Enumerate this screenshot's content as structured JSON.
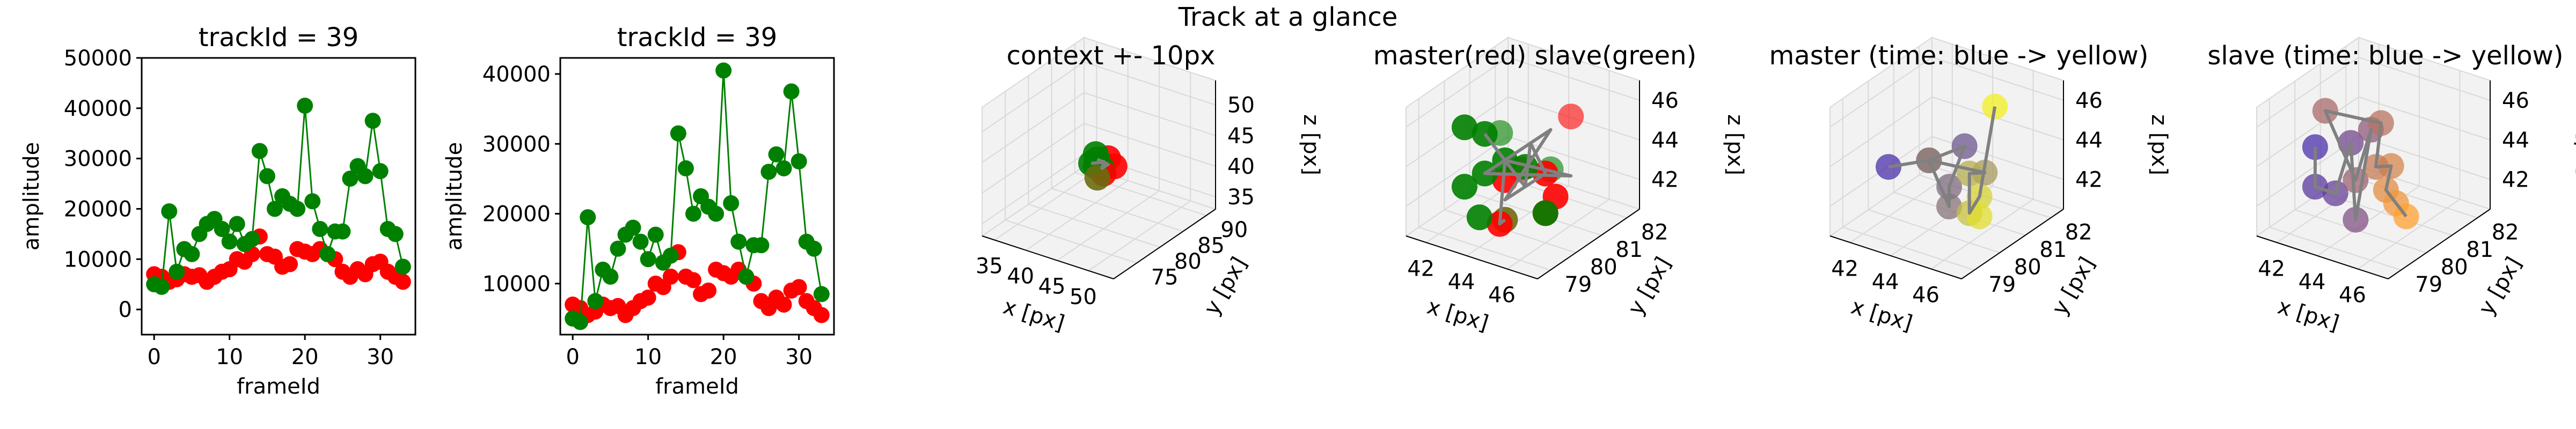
{
  "suptitle": "Track at a glance",
  "colors": {
    "master": "#ff0000",
    "slave": "#008000",
    "path": "#808080",
    "slave_path": "#2ca02c",
    "overlap": "#6b6b10",
    "pane": "#f2f2f2",
    "grid": "#d9d9d9",
    "time_start": "#4b2fa8",
    "time_end": "#f0f020",
    "slave_time_end": "#ffa030"
  },
  "chart_data": [
    {
      "type": "line",
      "title": "trackId = 39",
      "xlabel": "frameId",
      "ylabel": "amplitude",
      "xlim": [
        -1.65,
        34.65
      ],
      "ylim": [
        -5000,
        50000
      ],
      "xticks": [
        0,
        10,
        20,
        30
      ],
      "yticks": [
        0,
        10000,
        20000,
        30000,
        40000,
        50000
      ],
      "x": [
        0,
        1,
        2,
        3,
        4,
        5,
        6,
        7,
        8,
        9,
        10,
        11,
        12,
        13,
        14,
        15,
        16,
        17,
        18,
        19,
        20,
        21,
        22,
        23,
        24,
        25,
        26,
        27,
        28,
        29,
        30,
        31,
        32,
        33
      ],
      "series": [
        {
          "color_key": "master",
          "marker_only": true,
          "values": [
            7000,
            6500,
            5500,
            6000,
            7000,
            6500,
            6800,
            5500,
            6500,
            7500,
            8000,
            10000,
            9500,
            11000,
            14500,
            11000,
            10500,
            8500,
            9000,
            12000,
            11500,
            11000,
            12000,
            11000,
            10000,
            7500,
            6500,
            8000,
            7000,
            9000,
            9500,
            7500,
            6500,
            5500
          ]
        },
        {
          "color_key": "slave",
          "marker_only": false,
          "values": [
            5000,
            4500,
            19500,
            7500,
            12000,
            11000,
            15000,
            17000,
            18000,
            16000,
            13500,
            17000,
            13000,
            14000,
            31500,
            26500,
            20000,
            22500,
            21000,
            20000,
            40500,
            21500,
            16000,
            11000,
            15500,
            15500,
            26000,
            28500,
            26500,
            37500,
            27500,
            16000,
            15000,
            8500
          ]
        }
      ]
    },
    {
      "type": "line",
      "title": "trackId = 39",
      "xlabel": "frameId",
      "ylabel": "amplitude",
      "xlim": [
        -1.65,
        34.65
      ],
      "ylim": [
        2700,
        42300
      ],
      "xticks": [
        0,
        10,
        20,
        30
      ],
      "yticks": [
        10000,
        20000,
        30000,
        40000
      ],
      "x": [
        0,
        1,
        2,
        3,
        4,
        5,
        6,
        7,
        8,
        9,
        10,
        11,
        12,
        13,
        14,
        15,
        16,
        17,
        18,
        19,
        20,
        21,
        22,
        23,
        24,
        25,
        26,
        27,
        28,
        29,
        30,
        31,
        32,
        33
      ],
      "series": [
        {
          "color_key": "master",
          "marker_only": true,
          "values": [
            7000,
            6500,
            5500,
            6000,
            7000,
            6500,
            6800,
            5500,
            6500,
            7500,
            8000,
            10000,
            9500,
            11000,
            14500,
            11000,
            10500,
            8500,
            9000,
            12000,
            11500,
            11000,
            12000,
            11000,
            10000,
            7500,
            6500,
            8000,
            7000,
            9000,
            9500,
            7500,
            6500,
            5500
          ]
        },
        {
          "color_key": "slave",
          "marker_only": false,
          "values": [
            5000,
            4500,
            19500,
            7500,
            12000,
            11000,
            15000,
            17000,
            18000,
            16000,
            13500,
            17000,
            13000,
            14000,
            31500,
            26500,
            20000,
            22500,
            21000,
            20000,
            40500,
            21500,
            16000,
            11000,
            15500,
            15500,
            26000,
            28500,
            26500,
            37500,
            27500,
            16000,
            15000,
            8500
          ]
        }
      ]
    },
    {
      "type": "scatter",
      "projection": "3d",
      "title": "context +- 10px",
      "xlabel": "x [px]",
      "ylabel": "y [px]",
      "zlabel": "z [px]",
      "xlim": [
        33,
        54
      ],
      "ylim": [
        70,
        92
      ],
      "zlim": [
        33,
        54
      ],
      "xticks": [
        35,
        40,
        45,
        50
      ],
      "yticks": [
        75,
        80,
        85,
        90
      ],
      "zticks": [
        35,
        40,
        45,
        50
      ],
      "color_mode": "role",
      "points": [
        {
          "role": "master",
          "x": 45,
          "y": 81,
          "z": 44
        },
        {
          "role": "master",
          "x": 46,
          "y": 81,
          "z": 43
        },
        {
          "role": "master",
          "x": 45,
          "y": 80,
          "z": 42
        },
        {
          "role": "slave",
          "x": 43,
          "y": 80,
          "z": 43
        },
        {
          "role": "slave",
          "x": 43,
          "y": 81,
          "z": 44
        },
        {
          "role": "slave",
          "x": 44,
          "y": 81,
          "z": 42
        },
        {
          "role": "slave",
          "x": 43,
          "y": 81,
          "z": 42
        },
        {
          "role": "slave",
          "x": 44,
          "y": 80,
          "z": 44
        },
        {
          "role": "overlap",
          "x": 44,
          "y": 80,
          "z": 41
        }
      ],
      "path": [
        [
          43,
          80,
          43
        ],
        [
          44,
          81,
          43
        ],
        [
          45,
          80,
          44
        ],
        [
          44,
          81,
          42
        ],
        [
          45,
          81,
          43
        ],
        [
          44,
          80,
          44
        ]
      ]
    },
    {
      "type": "scatter",
      "projection": "3d",
      "title": "master(red) slave(green)",
      "xlabel": "x [px]",
      "ylabel": "y [px]",
      "zlabel": "z [px]",
      "xlim": [
        41,
        47.5
      ],
      "ylim": [
        78.5,
        82.5
      ],
      "zlim": [
        40.5,
        47
      ],
      "xticks": [
        42,
        44,
        46
      ],
      "yticks": [
        79,
        80,
        81,
        82
      ],
      "zticks": [
        42,
        44,
        46
      ],
      "color_mode": "role",
      "points": [
        {
          "role": "master",
          "x": 46,
          "y": 81,
          "z": 46
        },
        {
          "role": "master",
          "x": 46,
          "y": 80,
          "z": 44
        },
        {
          "role": "master",
          "x": 46.5,
          "y": 80,
          "z": 43
        },
        {
          "role": "master",
          "x": 44,
          "y": 80,
          "z": 43
        },
        {
          "role": "master",
          "x": 45,
          "y": 79,
          "z": 42
        },
        {
          "role": "master",
          "x": 46,
          "y": 80,
          "z": 42
        },
        {
          "role": "master",
          "x": 43.5,
          "y": 81,
          "z": 42.5
        },
        {
          "role": "slave",
          "x": 42,
          "y": 80,
          "z": 45
        },
        {
          "role": "slave",
          "x": 42.5,
          "y": 81,
          "z": 44
        },
        {
          "role": "slave",
          "x": 43,
          "y": 80,
          "z": 45
        },
        {
          "role": "slave",
          "x": 44,
          "y": 80,
          "z": 44
        },
        {
          "role": "slave",
          "x": 45,
          "y": 80,
          "z": 44
        },
        {
          "role": "slave",
          "x": 45,
          "y": 81,
          "z": 43
        },
        {
          "role": "slave",
          "x": 43,
          "y": 80,
          "z": 43
        },
        {
          "role": "slave",
          "x": 42,
          "y": 80,
          "z": 42
        },
        {
          "role": "slave",
          "x": 44,
          "y": 79,
          "z": 42
        },
        {
          "role": "slave",
          "x": 46,
          "y": 80,
          "z": 42
        },
        {
          "role": "overlap",
          "x": 44,
          "y": 80,
          "z": 41
        }
      ],
      "path": [
        [
          43,
          80,
          45
        ],
        [
          45,
          80,
          43
        ],
        [
          44,
          81,
          44
        ],
        [
          46,
          80,
          44
        ],
        [
          44,
          80,
          42
        ],
        [
          45,
          81,
          45
        ],
        [
          43,
          80,
          43
        ],
        [
          46,
          81,
          43
        ],
        [
          44,
          80,
          44
        ],
        [
          45,
          79,
          42
        ],
        [
          44,
          80,
          41
        ]
      ]
    },
    {
      "type": "scatter",
      "projection": "3d",
      "title": "master (time: blue -> yellow)",
      "xlabel": "x [px]",
      "ylabel": "y [px]",
      "zlabel": "z [px]",
      "xlim": [
        41,
        47.5
      ],
      "ylim": [
        78.5,
        82.5
      ],
      "zlim": [
        40.5,
        47
      ],
      "xticks": [
        42,
        44,
        46
      ],
      "yticks": [
        79,
        80,
        81,
        82
      ],
      "zticks": [
        42,
        44,
        46
      ],
      "color_mode": "time",
      "time_end_key": "time_end",
      "points": [
        {
          "t": 0.0,
          "x": 42,
          "y": 80,
          "z": 43
        },
        {
          "t": 0.1,
          "x": 44,
          "y": 80,
          "z": 44
        },
        {
          "t": 0.2,
          "x": 44.5,
          "y": 81,
          "z": 44
        },
        {
          "t": 0.3,
          "x": 45,
          "y": 80,
          "z": 43
        },
        {
          "t": 0.35,
          "x": 45,
          "y": 80,
          "z": 42
        },
        {
          "t": 0.45,
          "x": 44,
          "y": 80,
          "z": 44
        },
        {
          "t": 0.55,
          "x": 45.5,
          "y": 81,
          "z": 43
        },
        {
          "t": 0.65,
          "x": 46,
          "y": 80,
          "z": 44
        },
        {
          "t": 0.75,
          "x": 46,
          "y": 80,
          "z": 42
        },
        {
          "t": 0.85,
          "x": 46.5,
          "y": 80,
          "z": 43
        },
        {
          "t": 0.9,
          "x": 46.5,
          "y": 80,
          "z": 42
        },
        {
          "t": 1.0,
          "x": 46,
          "y": 81,
          "z": 46.5
        }
      ],
      "path": [
        [
          42,
          80,
          43
        ],
        [
          44,
          80,
          44
        ],
        [
          44.5,
          81,
          44
        ],
        [
          45,
          80,
          43
        ],
        [
          45,
          80,
          42
        ],
        [
          44,
          80,
          44
        ],
        [
          45.5,
          81,
          43
        ],
        [
          46,
          80,
          44
        ],
        [
          46,
          80,
          42
        ],
        [
          46.5,
          80,
          43
        ],
        [
          46,
          81,
          46.5
        ]
      ]
    },
    {
      "type": "scatter",
      "projection": "3d",
      "title": "slave (time: blue -> yellow)",
      "xlabel": "x [px]",
      "ylabel": "y [px]",
      "zlabel": "z [px]",
      "xlim": [
        41,
        47.5
      ],
      "ylim": [
        78.5,
        82.5
      ],
      "zlim": [
        40.5,
        47
      ],
      "xticks": [
        42,
        44,
        46
      ],
      "yticks": [
        79,
        80,
        81,
        82
      ],
      "zticks": [
        42,
        44,
        46
      ],
      "color_mode": "time",
      "time_end_key": "slave_time_end",
      "points": [
        {
          "t": 0.0,
          "x": 42,
          "y": 80,
          "z": 44
        },
        {
          "t": 0.08,
          "x": 42,
          "y": 80,
          "z": 42
        },
        {
          "t": 0.15,
          "x": 43,
          "y": 80,
          "z": 42
        },
        {
          "t": 0.22,
          "x": 42.5,
          "y": 81,
          "z": 43.5
        },
        {
          "t": 0.3,
          "x": 44,
          "y": 80,
          "z": 41
        },
        {
          "t": 0.38,
          "x": 43.5,
          "y": 81,
          "z": 44.5
        },
        {
          "t": 0.45,
          "x": 44,
          "y": 80,
          "z": 43
        },
        {
          "t": 0.52,
          "x": 42.5,
          "y": 80,
          "z": 46
        },
        {
          "t": 0.6,
          "x": 44,
          "y": 81,
          "z": 45
        },
        {
          "t": 0.68,
          "x": 45,
          "y": 80,
          "z": 44
        },
        {
          "t": 0.76,
          "x": 44.5,
          "y": 81,
          "z": 43
        },
        {
          "t": 0.84,
          "x": 45.5,
          "y": 80,
          "z": 43
        },
        {
          "t": 0.92,
          "x": 46,
          "y": 80,
          "z": 42.5
        },
        {
          "t": 1.0,
          "x": 46.5,
          "y": 80,
          "z": 42
        }
      ],
      "path": [
        [
          42,
          80,
          44
        ],
        [
          42,
          80,
          42
        ],
        [
          43,
          80,
          42
        ],
        [
          42.5,
          81,
          43.5
        ],
        [
          44,
          80,
          41
        ],
        [
          43.5,
          81,
          44.5
        ],
        [
          44,
          80,
          43
        ],
        [
          42.5,
          80,
          46
        ],
        [
          44,
          81,
          45
        ],
        [
          45,
          80,
          44
        ],
        [
          44.5,
          81,
          43
        ],
        [
          45.5,
          80,
          43
        ],
        [
          46,
          80,
          42.5
        ],
        [
          46.5,
          80,
          42
        ]
      ]
    }
  ]
}
